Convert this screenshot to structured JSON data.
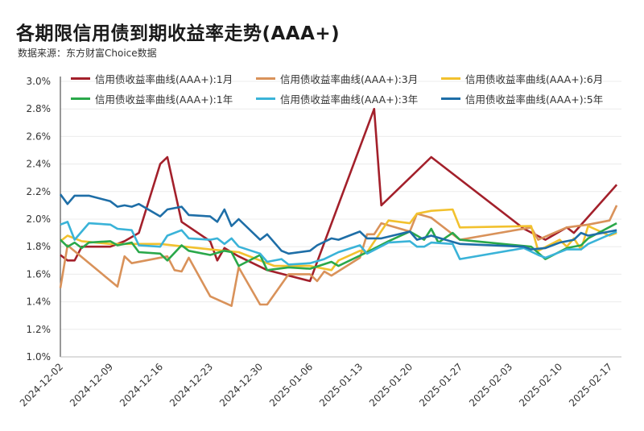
{
  "title": "各期限信用债到期收益率走势(AAA+)",
  "subtitle": "数据来源：东方财富Choice数据",
  "chart_data": {
    "type": "line",
    "title": "各期限信用债到期收益率走势(AAA+)",
    "xlabel": "",
    "ylabel": "",
    "ylim": [
      1.0,
      3.0
    ],
    "yticks": [
      "1.0%",
      "1.2%",
      "1.4%",
      "1.6%",
      "1.8%",
      "2.0%",
      "2.2%",
      "2.4%",
      "2.6%",
      "2.8%",
      "3.0%"
    ],
    "xticks": [
      "2024-12-02",
      "2024-12-09",
      "2024-12-16",
      "2024-12-23",
      "2024-12-30",
      "2025-01-06",
      "2025-01-13",
      "2025-01-20",
      "2025-01-27",
      "2025-02-03",
      "2025-02-10",
      "2025-02-17"
    ],
    "grid": "horizontal",
    "legend": "top",
    "series": [
      {
        "name": "信用债收益率曲线(AAA+):1月",
        "color": "#A3202B",
        "points": [
          [
            "2024-12-02",
            1.74
          ],
          [
            "2024-12-03",
            1.7
          ],
          [
            "2024-12-04",
            1.7
          ],
          [
            "2024-12-05",
            1.8
          ],
          [
            "2024-12-09",
            1.8
          ],
          [
            "2024-12-11",
            1.84
          ],
          [
            "2024-12-13",
            1.9
          ],
          [
            "2024-12-16",
            2.4
          ],
          [
            "2024-12-17",
            2.45
          ],
          [
            "2024-12-19",
            1.98
          ],
          [
            "2024-12-23",
            1.84
          ],
          [
            "2024-12-24",
            1.7
          ],
          [
            "2024-12-25",
            1.79
          ],
          [
            "2024-12-27",
            1.73
          ],
          [
            "2024-12-31",
            1.63
          ],
          [
            "2025-01-06",
            1.55
          ],
          [
            "2025-01-15",
            2.8
          ],
          [
            "2025-01-16",
            2.1
          ],
          [
            "2025-01-23",
            2.45
          ],
          [
            "2025-02-05",
            1.93
          ],
          [
            "2025-02-08",
            1.85
          ],
          [
            "2025-02-11",
            1.94
          ],
          [
            "2025-02-12",
            1.9
          ],
          [
            "2025-02-18",
            2.25
          ]
        ]
      },
      {
        "name": "信用债收益率曲线(AAA+):3月",
        "color": "#D9925A",
        "points": [
          [
            "2024-12-02",
            1.5
          ],
          [
            "2024-12-03",
            1.81
          ],
          [
            "2024-12-10",
            1.51
          ],
          [
            "2024-12-11",
            1.73
          ],
          [
            "2024-12-12",
            1.68
          ],
          [
            "2024-12-17",
            1.73
          ],
          [
            "2024-12-18",
            1.63
          ],
          [
            "2024-12-19",
            1.62
          ],
          [
            "2024-12-20",
            1.72
          ],
          [
            "2024-12-23",
            1.44
          ],
          [
            "2024-12-26",
            1.37
          ],
          [
            "2024-12-27",
            1.65
          ],
          [
            "2024-12-30",
            1.38
          ],
          [
            "2024-12-31",
            1.38
          ],
          [
            "2025-01-03",
            1.6
          ],
          [
            "2025-01-06",
            1.6
          ],
          [
            "2025-01-07",
            1.55
          ],
          [
            "2025-01-08",
            1.62
          ],
          [
            "2025-01-09",
            1.59
          ],
          [
            "2025-01-13",
            1.72
          ],
          [
            "2025-01-14",
            1.89
          ],
          [
            "2025-01-15",
            1.89
          ],
          [
            "2025-01-16",
            1.97
          ],
          [
            "2025-01-20",
            1.91
          ],
          [
            "2025-01-21",
            2.04
          ],
          [
            "2025-01-23",
            2.01
          ],
          [
            "2025-01-27",
            1.85
          ],
          [
            "2025-02-06",
            1.94
          ],
          [
            "2025-02-07",
            1.85
          ],
          [
            "2025-02-11",
            1.94
          ],
          [
            "2025-02-14",
            1.96
          ],
          [
            "2025-02-17",
            1.99
          ],
          [
            "2025-02-18",
            2.1
          ]
        ]
      },
      {
        "name": "信用债收益率曲线(AAA+):6月",
        "color": "#F2C12E",
        "points": [
          [
            "2024-12-02",
            1.84
          ],
          [
            "2024-12-03",
            1.88
          ],
          [
            "2024-12-05",
            1.84
          ],
          [
            "2024-12-09",
            1.82
          ],
          [
            "2024-12-16",
            1.82
          ],
          [
            "2024-12-23",
            1.78
          ],
          [
            "2024-12-27",
            1.76
          ],
          [
            "2025-01-01",
            1.66
          ],
          [
            "2025-01-06",
            1.66
          ],
          [
            "2025-01-09",
            1.63
          ],
          [
            "2025-01-10",
            1.7
          ],
          [
            "2025-01-13",
            1.77
          ],
          [
            "2025-01-14",
            1.76
          ],
          [
            "2025-01-17",
            1.99
          ],
          [
            "2025-01-20",
            1.97
          ],
          [
            "2025-01-21",
            2.04
          ],
          [
            "2025-01-23",
            2.06
          ],
          [
            "2025-01-26",
            2.07
          ],
          [
            "2025-01-27",
            1.94
          ],
          [
            "2025-02-06",
            1.95
          ],
          [
            "2025-02-07",
            1.77
          ],
          [
            "2025-02-10",
            1.85
          ],
          [
            "2025-02-11",
            1.8
          ],
          [
            "2025-02-12",
            1.86
          ],
          [
            "2025-02-13",
            1.78
          ],
          [
            "2025-02-14",
            1.95
          ],
          [
            "2025-02-17",
            1.88
          ],
          [
            "2025-02-18",
            1.9
          ]
        ]
      },
      {
        "name": "信用债收益率曲线(AAA+):1年",
        "color": "#2AA84A",
        "points": [
          [
            "2024-12-02",
            1.85
          ],
          [
            "2024-12-03",
            1.8
          ],
          [
            "2024-12-04",
            1.83
          ],
          [
            "2024-12-05",
            1.79
          ],
          [
            "2024-12-06",
            1.83
          ],
          [
            "2024-12-09",
            1.84
          ],
          [
            "2024-12-10",
            1.81
          ],
          [
            "2024-12-12",
            1.83
          ],
          [
            "2024-12-13",
            1.76
          ],
          [
            "2024-12-16",
            1.75
          ],
          [
            "2024-12-17",
            1.7
          ],
          [
            "2024-12-19",
            1.81
          ],
          [
            "2024-12-20",
            1.77
          ],
          [
            "2024-12-23",
            1.74
          ],
          [
            "2024-12-25",
            1.77
          ],
          [
            "2024-12-26",
            1.76
          ],
          [
            "2024-12-27",
            1.66
          ],
          [
            "2024-12-30",
            1.74
          ],
          [
            "2024-12-31",
            1.63
          ],
          [
            "2025-01-03",
            1.65
          ],
          [
            "2025-01-06",
            1.64
          ],
          [
            "2025-01-09",
            1.69
          ],
          [
            "2025-01-10",
            1.66
          ],
          [
            "2025-01-14",
            1.76
          ],
          [
            "2025-01-17",
            1.84
          ],
          [
            "2025-01-20",
            1.91
          ],
          [
            "2025-01-22",
            1.85
          ],
          [
            "2025-01-23",
            1.93
          ],
          [
            "2025-01-24",
            1.83
          ],
          [
            "2025-01-26",
            1.9
          ],
          [
            "2025-01-27",
            1.85
          ],
          [
            "2025-02-06",
            1.8
          ],
          [
            "2025-02-08",
            1.71
          ],
          [
            "2025-02-11",
            1.79
          ],
          [
            "2025-02-13",
            1.81
          ],
          [
            "2025-02-14",
            1.86
          ],
          [
            "2025-02-18",
            1.97
          ]
        ]
      },
      {
        "name": "信用债收益率曲线(AAA+):3年",
        "color": "#3AB3D8",
        "points": [
          [
            "2024-12-02",
            1.96
          ],
          [
            "2024-12-03",
            1.98
          ],
          [
            "2024-12-04",
            1.85
          ],
          [
            "2024-12-06",
            1.97
          ],
          [
            "2024-12-09",
            1.96
          ],
          [
            "2024-12-10",
            1.93
          ],
          [
            "2024-12-12",
            1.92
          ],
          [
            "2024-12-13",
            1.81
          ],
          [
            "2024-12-16",
            1.8
          ],
          [
            "2024-12-17",
            1.88
          ],
          [
            "2024-12-19",
            1.92
          ],
          [
            "2024-12-20",
            1.86
          ],
          [
            "2024-12-23",
            1.85
          ],
          [
            "2024-12-24",
            1.86
          ],
          [
            "2024-12-25",
            1.82
          ],
          [
            "2024-12-26",
            1.86
          ],
          [
            "2024-12-27",
            1.8
          ],
          [
            "2024-12-30",
            1.75
          ],
          [
            "2024-12-31",
            1.69
          ],
          [
            "2025-01-02",
            1.71
          ],
          [
            "2025-01-03",
            1.67
          ],
          [
            "2025-01-06",
            1.68
          ],
          [
            "2025-01-08",
            1.71
          ],
          [
            "2025-01-10",
            1.76
          ],
          [
            "2025-01-13",
            1.81
          ],
          [
            "2025-01-14",
            1.75
          ],
          [
            "2025-01-17",
            1.83
          ],
          [
            "2025-01-20",
            1.84
          ],
          [
            "2025-01-21",
            1.8
          ],
          [
            "2025-01-22",
            1.8
          ],
          [
            "2025-01-23",
            1.83
          ],
          [
            "2025-01-26",
            1.82
          ],
          [
            "2025-01-27",
            1.71
          ],
          [
            "2025-02-05",
            1.79
          ],
          [
            "2025-02-07",
            1.74
          ],
          [
            "2025-02-08",
            1.72
          ],
          [
            "2025-02-11",
            1.78
          ],
          [
            "2025-02-13",
            1.78
          ],
          [
            "2025-02-14",
            1.82
          ],
          [
            "2025-02-18",
            1.91
          ]
        ]
      },
      {
        "name": "信用债收益率曲线(AAA+):5年",
        "color": "#1E6EA7",
        "points": [
          [
            "2024-12-02",
            2.18
          ],
          [
            "2024-12-03",
            2.11
          ],
          [
            "2024-12-04",
            2.17
          ],
          [
            "2024-12-06",
            2.17
          ],
          [
            "2024-12-09",
            2.13
          ],
          [
            "2024-12-10",
            2.09
          ],
          [
            "2024-12-11",
            2.1
          ],
          [
            "2024-12-12",
            2.09
          ],
          [
            "2024-12-13",
            2.11
          ],
          [
            "2024-12-16",
            2.02
          ],
          [
            "2024-12-17",
            2.07
          ],
          [
            "2024-12-19",
            2.09
          ],
          [
            "2024-12-20",
            2.03
          ],
          [
            "2024-12-23",
            2.02
          ],
          [
            "2024-12-24",
            1.98
          ],
          [
            "2024-12-25",
            2.07
          ],
          [
            "2024-12-26",
            1.95
          ],
          [
            "2024-12-27",
            2.0
          ],
          [
            "2024-12-30",
            1.85
          ],
          [
            "2024-12-31",
            1.89
          ],
          [
            "2025-01-02",
            1.77
          ],
          [
            "2025-01-03",
            1.75
          ],
          [
            "2025-01-06",
            1.77
          ],
          [
            "2025-01-07",
            1.81
          ],
          [
            "2025-01-09",
            1.86
          ],
          [
            "2025-01-10",
            1.85
          ],
          [
            "2025-01-13",
            1.91
          ],
          [
            "2025-01-14",
            1.86
          ],
          [
            "2025-01-16",
            1.86
          ],
          [
            "2025-01-20",
            1.91
          ],
          [
            "2025-01-21",
            1.85
          ],
          [
            "2025-01-23",
            1.88
          ],
          [
            "2025-01-27",
            1.82
          ],
          [
            "2025-02-05",
            1.8
          ],
          [
            "2025-02-06",
            1.78
          ],
          [
            "2025-02-08",
            1.79
          ],
          [
            "2025-02-10",
            1.83
          ],
          [
            "2025-02-12",
            1.85
          ],
          [
            "2025-02-13",
            1.9
          ],
          [
            "2025-02-14",
            1.88
          ],
          [
            "2025-02-18",
            1.92
          ]
        ]
      }
    ]
  }
}
